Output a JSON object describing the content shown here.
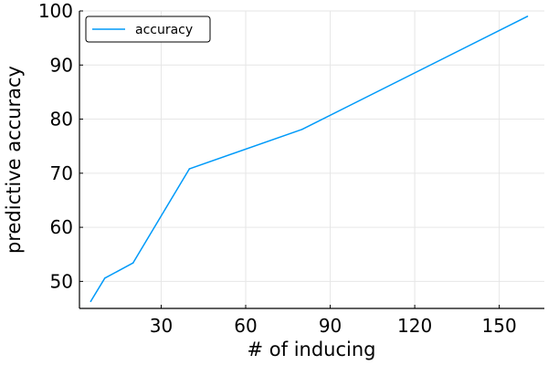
{
  "chart_data": {
    "type": "line",
    "title": "",
    "xlabel": "# of inducing",
    "ylabel": "predictive accuracy",
    "xlim": [
      1,
      166
    ],
    "ylim": [
      45,
      100
    ],
    "xticks": [
      30,
      60,
      90,
      120,
      150
    ],
    "yticks": [
      50,
      60,
      70,
      80,
      90,
      100
    ],
    "grid": true,
    "legend_position": "top-left",
    "series": [
      {
        "name": "accuracy",
        "color": "#009af9",
        "x": [
          5,
          10,
          20,
          40,
          80,
          160
        ],
        "y": [
          46.3,
          50.6,
          53.4,
          70.8,
          78.1,
          99.0
        ]
      }
    ]
  }
}
